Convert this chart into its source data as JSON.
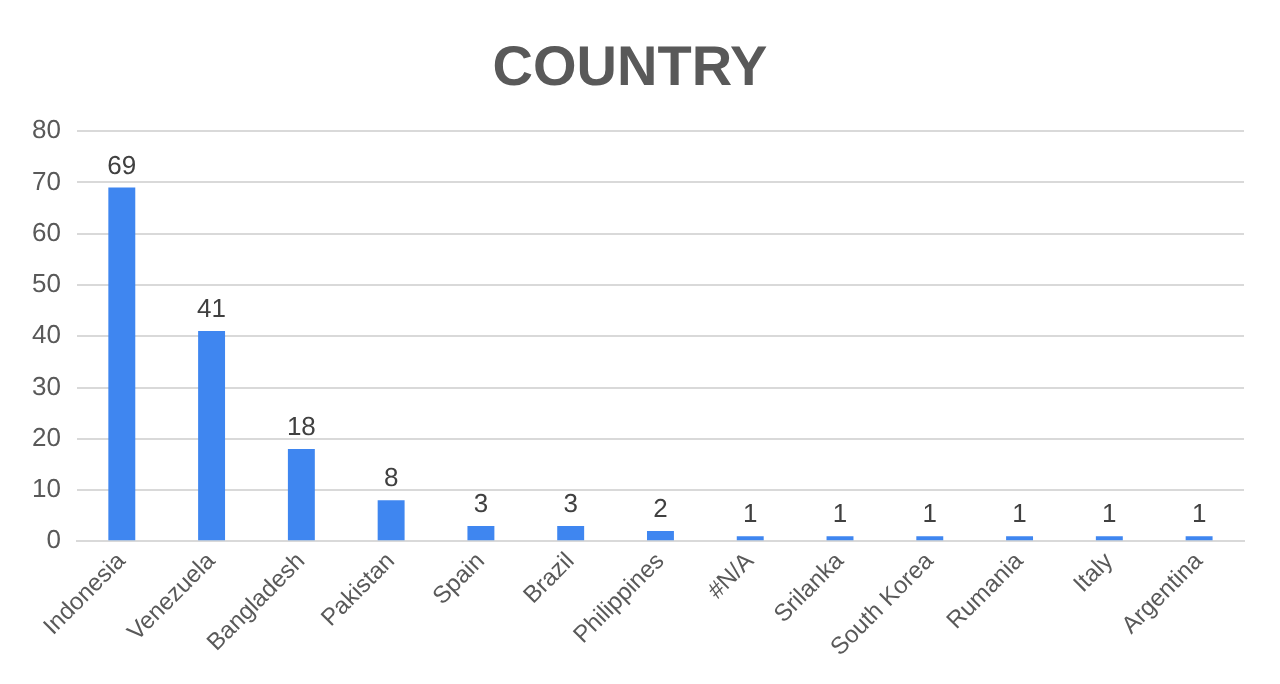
{
  "chart_data": {
    "type": "bar",
    "title": "COUNTRY",
    "categories": [
      "Indonesia",
      "Venezuela",
      "Bangladesh",
      "Pakistan",
      "Spain",
      "Brazil",
      "Philippines",
      "#N/A",
      "Srilanka",
      "South Korea",
      "Rumania",
      "Italy",
      "Argentina"
    ],
    "values": [
      69,
      41,
      18,
      8,
      3,
      3,
      2,
      1,
      1,
      1,
      1,
      1,
      1
    ],
    "color": "#3f86f0",
    "ylim": [
      0,
      80
    ],
    "yticks": [
      0,
      10,
      20,
      30,
      40,
      50,
      60,
      70,
      80
    ],
    "grid": "y",
    "data_labels": true,
    "legend": false
  }
}
